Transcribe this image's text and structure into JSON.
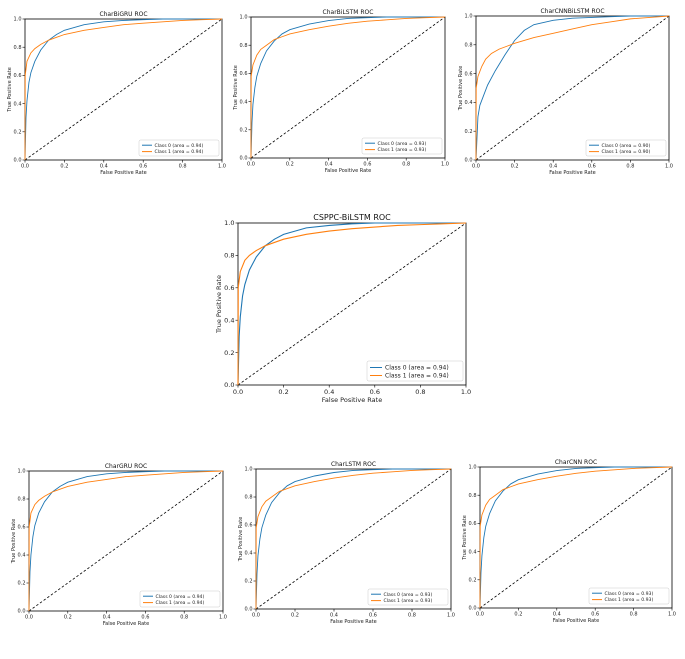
{
  "colors": {
    "class0": "#1f77b4",
    "class1": "#ff7f0e",
    "diagonal": "#000000",
    "frame": "#000000"
  },
  "chart_data": [
    {
      "type": "line",
      "title": "CharBiGRU ROC",
      "xlabel": "False Positive Rate",
      "ylabel": "True Positive Rate",
      "xlim": [
        0,
        1
      ],
      "ylim": [
        0,
        1
      ],
      "xticks": [
        "0.0",
        "0.2",
        "0.4",
        "0.6",
        "0.8",
        "1.0"
      ],
      "yticks": [
        "0.0",
        "0.2",
        "0.4",
        "0.6",
        "0.8",
        "1.0"
      ],
      "legend_position": "lower-right",
      "series": [
        {
          "name": "Class 0 (area = 0.94)",
          "x": [
            0,
            0.005,
            0.01,
            0.02,
            0.03,
            0.05,
            0.08,
            0.12,
            0.16,
            0.2,
            0.3,
            0.4,
            0.5,
            0.6,
            0.7,
            0.8,
            1.0
          ],
          "y": [
            0,
            0.3,
            0.42,
            0.55,
            0.62,
            0.7,
            0.78,
            0.85,
            0.89,
            0.92,
            0.96,
            0.98,
            0.99,
            0.995,
            1.0,
            1.0,
            1.0
          ]
        },
        {
          "name": "Class 1 (area = 0.94)",
          "x": [
            0,
            0.001,
            0.01,
            0.03,
            0.05,
            0.08,
            0.12,
            0.16,
            0.2,
            0.3,
            0.4,
            0.5,
            0.6,
            0.7,
            0.8,
            0.9,
            1.0
          ],
          "y": [
            0,
            0.6,
            0.7,
            0.76,
            0.79,
            0.82,
            0.85,
            0.87,
            0.89,
            0.92,
            0.94,
            0.96,
            0.97,
            0.98,
            0.99,
            0.995,
            1.0
          ]
        }
      ]
    },
    {
      "type": "line",
      "title": "CharBiLSTM ROC",
      "xlabel": "False Positive Rate",
      "ylabel": "True Positive Rate",
      "xlim": [
        0,
        1
      ],
      "ylim": [
        0,
        1
      ],
      "xticks": [
        "0.0",
        "0.2",
        "0.4",
        "0.6",
        "0.8",
        "1.0"
      ],
      "yticks": [
        "0.0",
        "0.2",
        "0.4",
        "0.6",
        "0.8",
        "1.0"
      ],
      "legend_position": "lower-right",
      "series": [
        {
          "name": "Class 0 (area = 0.93)",
          "x": [
            0,
            0.005,
            0.01,
            0.02,
            0.03,
            0.05,
            0.08,
            0.12,
            0.16,
            0.2,
            0.3,
            0.4,
            0.5,
            0.6,
            0.7,
            0.8,
            1.0
          ],
          "y": [
            0,
            0.25,
            0.38,
            0.5,
            0.58,
            0.67,
            0.76,
            0.83,
            0.88,
            0.91,
            0.95,
            0.975,
            0.99,
            0.995,
            1.0,
            1.0,
            1.0
          ]
        },
        {
          "name": "Class 1 (area = 0.93)",
          "x": [
            0,
            0.001,
            0.01,
            0.03,
            0.05,
            0.08,
            0.12,
            0.16,
            0.2,
            0.3,
            0.4,
            0.5,
            0.6,
            0.7,
            0.8,
            0.9,
            1.0
          ],
          "y": [
            0,
            0.58,
            0.66,
            0.73,
            0.77,
            0.8,
            0.84,
            0.86,
            0.88,
            0.91,
            0.935,
            0.955,
            0.97,
            0.98,
            0.99,
            0.995,
            1.0
          ]
        }
      ]
    },
    {
      "type": "line",
      "title": "CharCNNBiLSTM ROC",
      "xlabel": "False Positive Rate",
      "ylabel": "True Positive Rate",
      "xlim": [
        0,
        1
      ],
      "ylim": [
        0,
        1
      ],
      "xticks": [
        "0.0",
        "0.2",
        "0.4",
        "0.6",
        "0.8",
        "1.0"
      ],
      "yticks": [
        "0.0",
        "0.2",
        "0.4",
        "0.6",
        "0.8",
        "1.0"
      ],
      "legend_position": "lower-right",
      "series": [
        {
          "name": "Class 0 (area = 0.90)",
          "x": [
            0,
            0.01,
            0.02,
            0.04,
            0.06,
            0.1,
            0.15,
            0.2,
            0.25,
            0.3,
            0.4,
            0.5,
            0.6,
            0.7,
            0.8,
            0.9,
            1.0
          ],
          "y": [
            0,
            0.3,
            0.38,
            0.45,
            0.52,
            0.62,
            0.73,
            0.83,
            0.9,
            0.94,
            0.97,
            0.985,
            0.99,
            0.995,
            1.0,
            1.0,
            1.0
          ]
        },
        {
          "name": "Class 1 (area = 0.90)",
          "x": [
            0,
            0.001,
            0.01,
            0.03,
            0.05,
            0.08,
            0.12,
            0.16,
            0.2,
            0.3,
            0.4,
            0.5,
            0.6,
            0.7,
            0.8,
            0.9,
            1.0
          ],
          "y": [
            0,
            0.5,
            0.58,
            0.65,
            0.7,
            0.74,
            0.77,
            0.79,
            0.81,
            0.85,
            0.88,
            0.91,
            0.94,
            0.96,
            0.98,
            0.99,
            1.0
          ]
        }
      ]
    },
    {
      "type": "line",
      "title": "CSPPC-BiLSTM ROC",
      "xlabel": "False Positive Rate",
      "ylabel": "True Positive Rate",
      "xlim": [
        0,
        1
      ],
      "ylim": [
        0,
        1
      ],
      "xticks": [
        "0.0",
        "0.2",
        "0.4",
        "0.6",
        "0.8",
        "1.0"
      ],
      "yticks": [
        "0.0",
        "0.2",
        "0.4",
        "0.6",
        "0.8",
        "1.0"
      ],
      "legend_position": "lower-right",
      "series": [
        {
          "name": "Class 0 (area = 0.94)",
          "x": [
            0,
            0.005,
            0.01,
            0.02,
            0.03,
            0.05,
            0.08,
            0.12,
            0.16,
            0.2,
            0.3,
            0.4,
            0.5,
            0.6,
            0.7,
            0.8,
            1.0
          ],
          "y": [
            0,
            0.3,
            0.42,
            0.55,
            0.62,
            0.71,
            0.79,
            0.86,
            0.9,
            0.93,
            0.97,
            0.985,
            0.995,
            1.0,
            1.0,
            1.0,
            1.0
          ]
        },
        {
          "name": "Class 1 (area = 0.94)",
          "x": [
            0,
            0.001,
            0.01,
            0.03,
            0.05,
            0.08,
            0.12,
            0.16,
            0.2,
            0.3,
            0.4,
            0.5,
            0.6,
            0.7,
            0.8,
            0.9,
            1.0
          ],
          "y": [
            0,
            0.6,
            0.7,
            0.77,
            0.8,
            0.83,
            0.86,
            0.88,
            0.9,
            0.93,
            0.95,
            0.965,
            0.975,
            0.985,
            0.99,
            0.995,
            1.0
          ]
        }
      ]
    },
    {
      "type": "line",
      "title": "CharGRU ROC",
      "xlabel": "False Positive Rate",
      "ylabel": "True Positive Rate",
      "xlim": [
        0,
        1
      ],
      "ylim": [
        0,
        1
      ],
      "xticks": [
        "0.0",
        "0.2",
        "0.4",
        "0.6",
        "0.8",
        "1.0"
      ],
      "yticks": [
        "0.0",
        "0.2",
        "0.4",
        "0.6",
        "0.8",
        "1.0"
      ],
      "legend_position": "lower-right",
      "series": [
        {
          "name": "Class 0 (area = 0.94)",
          "x": [
            0,
            0.005,
            0.01,
            0.02,
            0.03,
            0.05,
            0.08,
            0.12,
            0.16,
            0.2,
            0.3,
            0.4,
            0.5,
            0.6,
            0.7,
            0.8,
            1.0
          ],
          "y": [
            0,
            0.28,
            0.4,
            0.53,
            0.61,
            0.7,
            0.78,
            0.85,
            0.89,
            0.92,
            0.96,
            0.98,
            0.99,
            0.995,
            1.0,
            1.0,
            1.0
          ]
        },
        {
          "name": "Class 1 (area = 0.94)",
          "x": [
            0,
            0.001,
            0.01,
            0.03,
            0.05,
            0.08,
            0.12,
            0.16,
            0.2,
            0.3,
            0.4,
            0.5,
            0.6,
            0.7,
            0.8,
            0.9,
            1.0
          ],
          "y": [
            0,
            0.6,
            0.7,
            0.76,
            0.79,
            0.82,
            0.85,
            0.87,
            0.89,
            0.92,
            0.94,
            0.96,
            0.97,
            0.98,
            0.99,
            0.995,
            1.0
          ]
        }
      ]
    },
    {
      "type": "line",
      "title": "CharLSTM ROC",
      "xlabel": "False Positive Rate",
      "ylabel": "True Positive Rate",
      "xlim": [
        0,
        1
      ],
      "ylim": [
        0,
        1
      ],
      "xticks": [
        "0.0",
        "0.2",
        "0.4",
        "0.6",
        "0.8",
        "1.0"
      ],
      "yticks": [
        "0.0",
        "0.2",
        "0.4",
        "0.6",
        "0.8",
        "1.0"
      ],
      "legend_position": "lower-right",
      "series": [
        {
          "name": "Class 0 (area = 0.93)",
          "x": [
            0,
            0.005,
            0.01,
            0.02,
            0.03,
            0.05,
            0.08,
            0.12,
            0.16,
            0.2,
            0.3,
            0.4,
            0.5,
            0.6,
            0.7,
            0.8,
            1.0
          ],
          "y": [
            0,
            0.25,
            0.38,
            0.5,
            0.58,
            0.67,
            0.76,
            0.83,
            0.88,
            0.91,
            0.95,
            0.975,
            0.99,
            0.995,
            1.0,
            1.0,
            1.0
          ]
        },
        {
          "name": "Class 1 (area = 0.93)",
          "x": [
            0,
            0.001,
            0.01,
            0.03,
            0.05,
            0.08,
            0.12,
            0.16,
            0.2,
            0.3,
            0.4,
            0.5,
            0.6,
            0.7,
            0.8,
            0.9,
            1.0
          ],
          "y": [
            0,
            0.58,
            0.66,
            0.73,
            0.77,
            0.8,
            0.84,
            0.86,
            0.88,
            0.91,
            0.935,
            0.955,
            0.97,
            0.98,
            0.99,
            0.995,
            1.0
          ]
        }
      ]
    },
    {
      "type": "line",
      "title": "CharCNN ROC",
      "xlabel": "False Positive Rate",
      "ylabel": "True Positive Rate",
      "xlim": [
        0,
        1
      ],
      "ylim": [
        0,
        1
      ],
      "xticks": [
        "0.0",
        "0.2",
        "0.4",
        "0.6",
        "0.8",
        "1.0"
      ],
      "yticks": [
        "0.0",
        "0.2",
        "0.4",
        "0.6",
        "0.8",
        "1.0"
      ],
      "legend_position": "lower-right",
      "series": [
        {
          "name": "Class 0 (area = 0.93)",
          "x": [
            0,
            0.005,
            0.01,
            0.02,
            0.03,
            0.05,
            0.08,
            0.12,
            0.16,
            0.2,
            0.3,
            0.4,
            0.5,
            0.6,
            0.7,
            0.8,
            1.0
          ],
          "y": [
            0,
            0.25,
            0.37,
            0.5,
            0.58,
            0.67,
            0.76,
            0.83,
            0.88,
            0.91,
            0.95,
            0.975,
            0.99,
            0.995,
            1.0,
            1.0,
            1.0
          ]
        },
        {
          "name": "Class 1 (area = 0.93)",
          "x": [
            0,
            0.001,
            0.01,
            0.03,
            0.05,
            0.08,
            0.12,
            0.16,
            0.2,
            0.3,
            0.4,
            0.5,
            0.6,
            0.7,
            0.8,
            0.9,
            1.0
          ],
          "y": [
            0,
            0.58,
            0.66,
            0.73,
            0.77,
            0.8,
            0.84,
            0.86,
            0.88,
            0.91,
            0.935,
            0.955,
            0.97,
            0.98,
            0.99,
            0.995,
            1.0
          ]
        }
      ]
    }
  ]
}
